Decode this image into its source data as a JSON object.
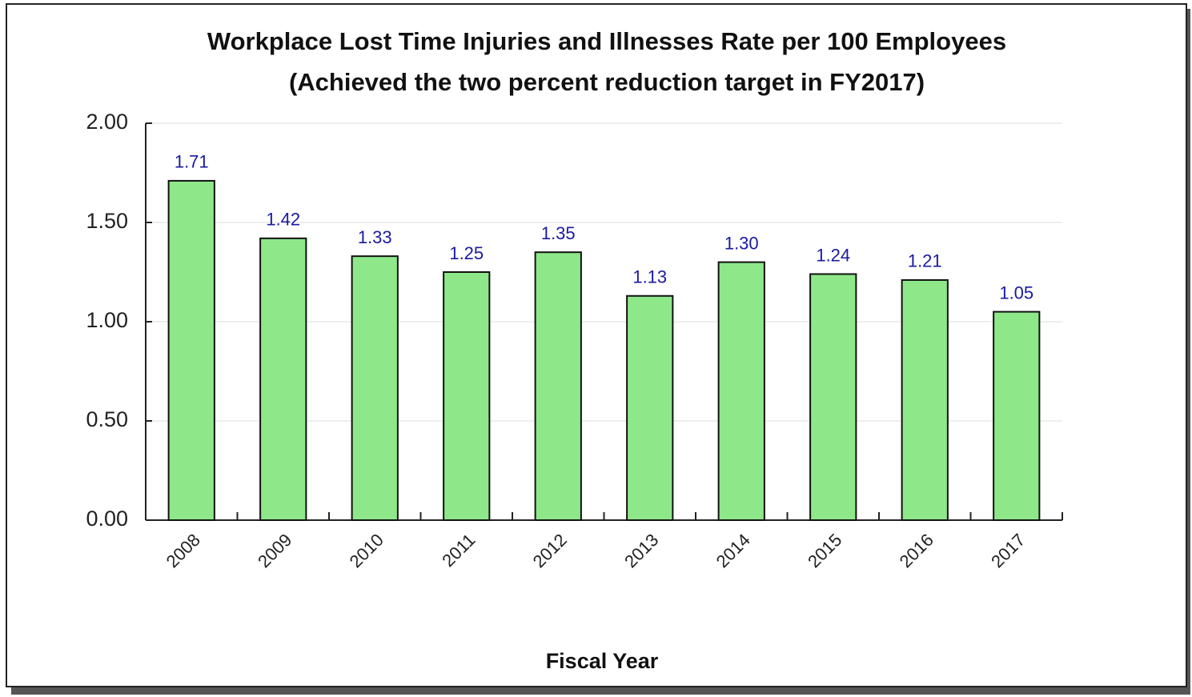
{
  "chart_data": {
    "type": "bar",
    "title": "Workplace Lost Time Injuries and Illnesses Rate per 100 Employees",
    "subtitle": "(Achieved the two percent reduction target in FY2017)",
    "x_label": "Fiscal Year",
    "categories": [
      "2008",
      "2009",
      "2010",
      "2011",
      "2012",
      "2013",
      "2014",
      "2015",
      "2016",
      "2017"
    ],
    "values": [
      1.71,
      1.42,
      1.33,
      1.25,
      1.35,
      1.13,
      1.3,
      1.24,
      1.21,
      1.05
    ],
    "value_labels": [
      "1.71",
      "1.42",
      "1.33",
      "1.25",
      "1.35",
      "1.13",
      "1.30",
      "1.24",
      "1.21",
      "1.05"
    ],
    "color": "#8ee88a",
    "ylim": [
      0,
      2
    ],
    "yticks": [
      {
        "value": 0,
        "label": "0.00"
      },
      {
        "value": 0.5,
        "label": "0.50"
      },
      {
        "value": 1,
        "label": "1.00"
      },
      {
        "value": 1.5,
        "label": "1.50"
      },
      {
        "value": 2,
        "label": "2.00"
      }
    ],
    "grid": true
  }
}
